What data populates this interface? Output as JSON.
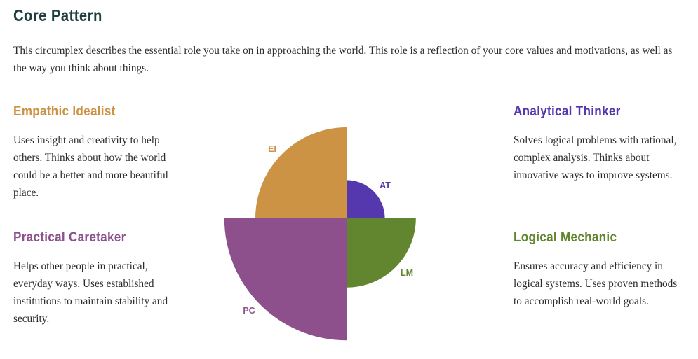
{
  "title": "Core Pattern",
  "intro": "This circumplex describes the essential role you take on in approaching the world. This role is a reflection of your core values and motivations, as well as the way you think about things.",
  "quadrants": {
    "ei": {
      "heading": "Empathic Idealist",
      "description": "Uses insight and creativity to help others. Thinks about how the world could be a better and more beautiful place.",
      "abbr": "EI",
      "color": "#cd9344"
    },
    "at": {
      "heading": "Analytical Thinker",
      "description": "Solves logical problems with rational, complex analysis. Thinks about innovative ways to improve systems.",
      "abbr": "AT",
      "color": "#5538ae"
    },
    "pc": {
      "heading": "Practical Caretaker",
      "description": "Helps other people in practical, everyday ways. Uses established institutions to maintain stability and security.",
      "abbr": "PC",
      "color": "#8d508d"
    },
    "lm": {
      "heading": "Logical Mechanic",
      "description": "Ensures accuracy and efficiency in logical systems. Uses proven methods to accomplish real-world goals.",
      "abbr": "LM",
      "color": "#61862f"
    }
  },
  "chart_data": {
    "type": "circumplex",
    "segments": [
      {
        "key": "EI",
        "relative_size": 1.0
      },
      {
        "key": "AT",
        "relative_size": 0.42
      },
      {
        "key": "LM",
        "relative_size": 0.76
      },
      {
        "key": "PC",
        "relative_size": 1.34
      }
    ]
  }
}
